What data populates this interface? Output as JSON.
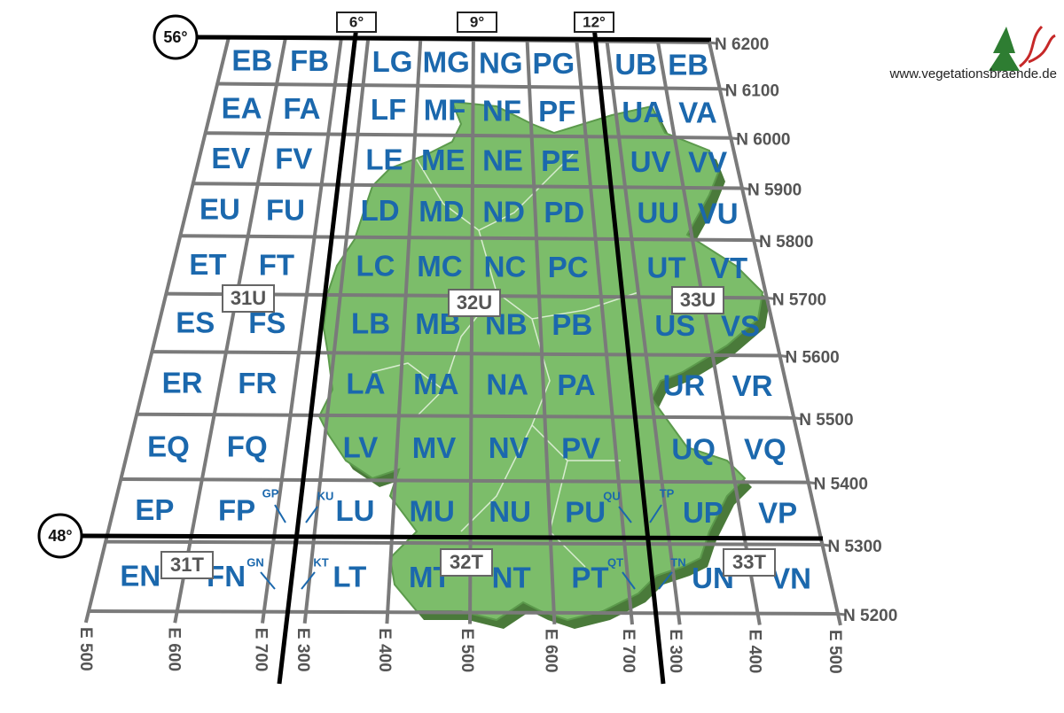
{
  "website": "www.vegetationsbraende.de",
  "latitudes": [
    "56°",
    "48°"
  ],
  "longitudes": [
    "6°",
    "9°",
    "12°"
  ],
  "zones": [
    "31U",
    "32U",
    "33U",
    "31T",
    "32T",
    "33T"
  ],
  "northings": [
    "N 6200",
    "N 6100",
    "N 6000",
    "N 5900",
    "N 5800",
    "N 5700",
    "N 5600",
    "N 5500",
    "N 5400",
    "N 5300",
    "N 5200"
  ],
  "eastings": [
    "E 500",
    "E 600",
    "E 700",
    "E 300",
    "E 400",
    "E 500",
    "E 600",
    "E 700",
    "E 300",
    "E 400",
    "E 500"
  ],
  "cells": [
    [
      "EB",
      "FB",
      "LG",
      "MG",
      "NG",
      "PG",
      "UB",
      "EB"
    ],
    [
      "EA",
      "FA",
      "LF",
      "MF",
      "NF",
      "PF",
      "UA",
      "VA"
    ],
    [
      "EV",
      "FV",
      "LE",
      "ME",
      "NE",
      "PE",
      "UV",
      "VV"
    ],
    [
      "EU",
      "FU",
      "LD",
      "MD",
      "ND",
      "PD",
      "UU",
      "VU"
    ],
    [
      "ET",
      "FT",
      "LC",
      "MC",
      "NC",
      "PC",
      "UT",
      "VT"
    ],
    [
      "ES",
      "FS",
      "LB",
      "MB",
      "NB",
      "PB",
      "US",
      "VS"
    ],
    [
      "ER",
      "FR",
      "LA",
      "MA",
      "NA",
      "PA",
      "UR",
      "VR"
    ],
    [
      "EQ",
      "FQ",
      "LV",
      "MV",
      "NV",
      "PV",
      "UQ",
      "VQ"
    ],
    [
      "EP",
      "FP",
      "LU",
      "MU",
      "NU",
      "PU",
      "UP",
      "VP"
    ],
    [
      "EN",
      "FN",
      "LT",
      "MT",
      "NT",
      "PT",
      "UN",
      "VN"
    ]
  ],
  "small_cells": [
    "GP",
    "KU",
    "QU",
    "TP",
    "GN",
    "KT",
    "QT",
    "TN"
  ]
}
